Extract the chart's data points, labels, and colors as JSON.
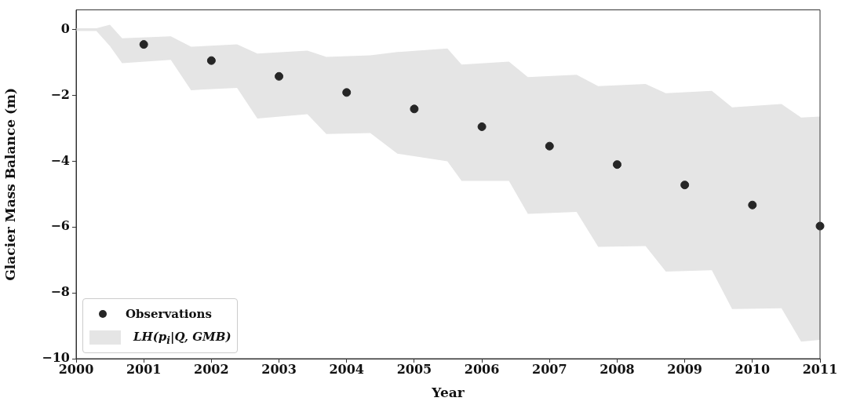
{
  "chart_data": {
    "type": "scatter",
    "xlabel": "Year",
    "ylabel": "Glacier Mass Balance (m)",
    "xlim": [
      2000,
      2011
    ],
    "ylim": [
      -10,
      0.6
    ],
    "xticks": [
      2000,
      2001,
      2002,
      2003,
      2004,
      2005,
      2006,
      2007,
      2008,
      2009,
      2010,
      2011
    ],
    "yticks": [
      -10,
      -8,
      -6,
      -4,
      -2,
      0
    ],
    "legend": "bottom left",
    "marker": "circle",
    "series": [
      {
        "name": "Observations",
        "type": "scatter",
        "color": "#262626",
        "x": [
          2001,
          2002,
          2003,
          2004,
          2005,
          2006,
          2007,
          2008,
          2009,
          2010,
          2011
        ],
        "values": [
          -0.45,
          -0.94,
          -1.42,
          -1.91,
          -2.41,
          -2.95,
          -3.54,
          -4.1,
          -4.72,
          -5.33,
          -5.97
        ]
      },
      {
        "name": "LH(p$_{i}$|Q, GMB)",
        "type": "area",
        "color": "#e5e5e5",
        "x": [
          2000,
          2000.3,
          2000.5,
          2000.68,
          2001.4,
          2001.7,
          2002.38,
          2002.68,
          2003.42,
          2003.7,
          2004.35,
          2004.75,
          2005.49,
          2005.7,
          2006.4,
          2006.68,
          2007.4,
          2007.72,
          2008.42,
          2008.72,
          2009.4,
          2009.7,
          2010.43,
          2010.72,
          2011
        ],
        "values": [
          null,
          null,
          null,
          null,
          null,
          null,
          null,
          null,
          null,
          null,
          null,
          null,
          null,
          null,
          null,
          null,
          null,
          null,
          null,
          null,
          null,
          null,
          null,
          null,
          null
        ],
        "upper": [
          0.04,
          0.04,
          0.15,
          -0.26,
          -0.2,
          -0.52,
          -0.45,
          -0.73,
          -0.64,
          -0.83,
          -0.78,
          -0.68,
          -0.57,
          -1.06,
          -0.97,
          -1.44,
          -1.37,
          -1.72,
          -1.65,
          -1.93,
          -1.86,
          -2.36,
          -2.26,
          -2.67,
          -2.64
        ],
        "lower": [
          -0.04,
          -0.04,
          -0.5,
          -1.02,
          -0.92,
          -1.84,
          -1.77,
          -2.7,
          -2.57,
          -3.17,
          -3.14,
          -3.77,
          -4.0,
          -4.6,
          -4.6,
          -5.6,
          -5.54,
          -6.6,
          -6.58,
          -7.35,
          -7.31,
          -8.49,
          -8.47,
          -9.48,
          -9.43
        ]
      }
    ]
  }
}
